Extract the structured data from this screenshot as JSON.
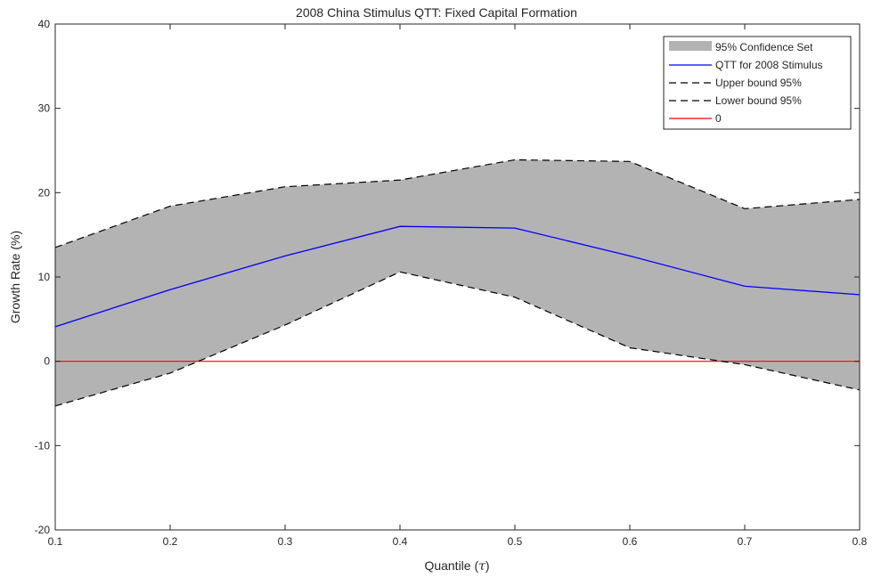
{
  "chart_data": {
    "type": "area",
    "title": "2008 China Stimulus QTT: Fixed Capital Formation",
    "xlabel_prefix": "Quantile (",
    "xlabel_symbol": "τ",
    "xlabel_suffix": ")",
    "ylabel": "Growth Rate (%)",
    "xlim": [
      0.1,
      0.8
    ],
    "ylim": [
      -20,
      40
    ],
    "x_ticks": [
      0.1,
      0.2,
      0.3,
      0.4,
      0.5,
      0.6,
      0.7,
      0.8
    ],
    "x_tick_labels": [
      "0.1",
      "0.2",
      "0.3",
      "0.4",
      "0.5",
      "0.6",
      "0.7",
      "0.8"
    ],
    "y_ticks": [
      -20,
      -10,
      0,
      10,
      20,
      30,
      40
    ],
    "y_tick_labels": [
      "-20",
      "-10",
      "0",
      "10",
      "20",
      "30",
      "40"
    ],
    "grid": false,
    "legend_position": "top-right",
    "x": [
      0.1,
      0.2,
      0.3,
      0.4,
      0.5,
      0.6,
      0.7,
      0.8
    ],
    "series": [
      {
        "name": "95% Confidence Set",
        "kind": "band",
        "color": "#b3b3b3"
      },
      {
        "name": "QTT for 2008 Stimulus",
        "kind": "line",
        "color": "#0000ff",
        "values": [
          4.1,
          8.5,
          12.5,
          16.0,
          15.8,
          12.5,
          8.9,
          7.9
        ]
      },
      {
        "name": "Upper bound 95%",
        "kind": "dashed",
        "color": "#000000",
        "values": [
          13.5,
          18.4,
          20.7,
          21.5,
          23.9,
          23.7,
          18.1,
          19.2
        ]
      },
      {
        "name": "Lower bound 95%",
        "kind": "dashed",
        "color": "#000000",
        "values": [
          -5.3,
          -1.4,
          4.3,
          10.6,
          7.6,
          1.6,
          -0.4,
          -3.4
        ]
      },
      {
        "name": "0",
        "kind": "line",
        "color": "#ff0000",
        "values": [
          0,
          0,
          0,
          0,
          0,
          0,
          0,
          0
        ]
      }
    ]
  }
}
